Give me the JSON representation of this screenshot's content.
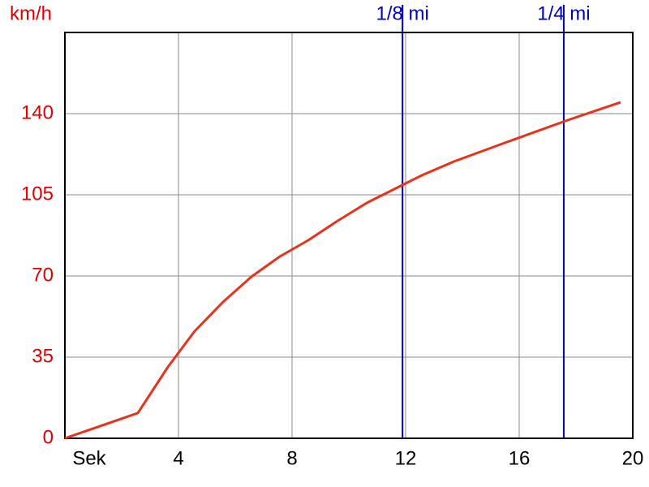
{
  "chart_data": {
    "type": "line",
    "ylabel": "km/h",
    "xlabel": "Sek",
    "x": [
      0,
      2.57,
      3.63,
      4.57,
      5.57,
      6.57,
      7.57,
      8.57,
      9.57,
      10.63,
      12.57,
      13.71,
      15.49,
      17.71,
      19.57
    ],
    "series": [
      {
        "color": "#e8321e",
        "values": [
          0,
          10.9,
          30.8,
          46.2,
          58.8,
          69.7,
          78.4,
          85.4,
          93.5,
          101.5,
          113.4,
          119.4,
          127.4,
          137.2,
          144.9
        ]
      }
    ],
    "xlim": [
      0,
      20
    ],
    "xticks": [
      4,
      8,
      12,
      16,
      20
    ],
    "ylim": [
      0,
      175
    ],
    "yticks": [
      0,
      35,
      70,
      105,
      140
    ],
    "grid": true,
    "tick_label_color": "#e00000",
    "markers": [
      {
        "label": "1/8 mi",
        "x": 11.89,
        "color": "#0000c0"
      },
      {
        "label": "1/4 mi",
        "x": 17.57,
        "color": "#0000c0"
      }
    ]
  }
}
